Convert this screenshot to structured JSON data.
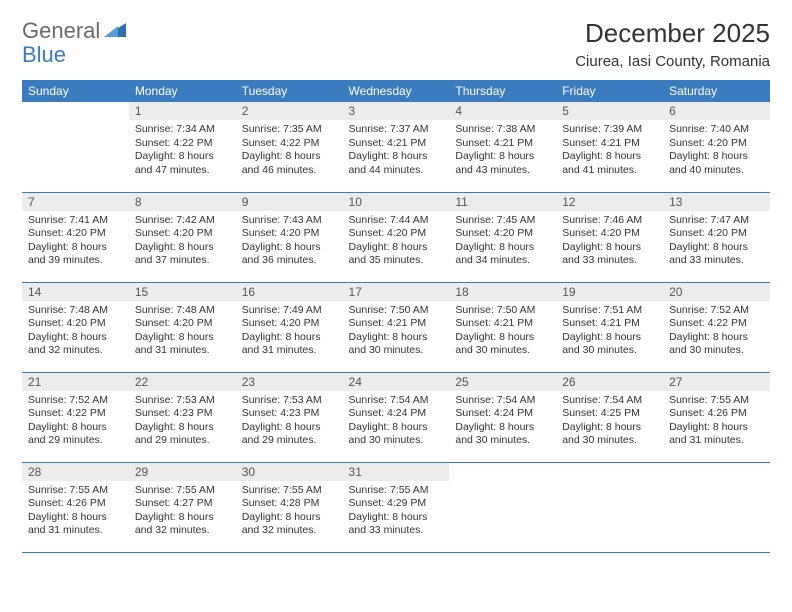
{
  "brand": {
    "part1": "General",
    "part2": "Blue"
  },
  "title": "December 2025",
  "location": "Ciurea, Iasi County, Romania",
  "colors": {
    "header_bg": "#3b7bbf",
    "header_fg": "#ffffff",
    "daynum_bg": "#ececec",
    "rule": "#3b7bbf",
    "text": "#333333",
    "page_bg": "#ffffff"
  },
  "typography": {
    "title_fontsize": 26,
    "location_fontsize": 15,
    "weekday_fontsize": 12,
    "body_fontsize": 10.5
  },
  "weekdays": [
    "Sunday",
    "Monday",
    "Tuesday",
    "Wednesday",
    "Thursday",
    "Friday",
    "Saturday"
  ],
  "weeks": [
    [
      null,
      {
        "n": "1",
        "sr": "Sunrise: 7:34 AM",
        "ss": "Sunset: 4:22 PM",
        "dl": "Daylight: 8 hours and 47 minutes."
      },
      {
        "n": "2",
        "sr": "Sunrise: 7:35 AM",
        "ss": "Sunset: 4:22 PM",
        "dl": "Daylight: 8 hours and 46 minutes."
      },
      {
        "n": "3",
        "sr": "Sunrise: 7:37 AM",
        "ss": "Sunset: 4:21 PM",
        "dl": "Daylight: 8 hours and 44 minutes."
      },
      {
        "n": "4",
        "sr": "Sunrise: 7:38 AM",
        "ss": "Sunset: 4:21 PM",
        "dl": "Daylight: 8 hours and 43 minutes."
      },
      {
        "n": "5",
        "sr": "Sunrise: 7:39 AM",
        "ss": "Sunset: 4:21 PM",
        "dl": "Daylight: 8 hours and 41 minutes."
      },
      {
        "n": "6",
        "sr": "Sunrise: 7:40 AM",
        "ss": "Sunset: 4:20 PM",
        "dl": "Daylight: 8 hours and 40 minutes."
      }
    ],
    [
      {
        "n": "7",
        "sr": "Sunrise: 7:41 AM",
        "ss": "Sunset: 4:20 PM",
        "dl": "Daylight: 8 hours and 39 minutes."
      },
      {
        "n": "8",
        "sr": "Sunrise: 7:42 AM",
        "ss": "Sunset: 4:20 PM",
        "dl": "Daylight: 8 hours and 37 minutes."
      },
      {
        "n": "9",
        "sr": "Sunrise: 7:43 AM",
        "ss": "Sunset: 4:20 PM",
        "dl": "Daylight: 8 hours and 36 minutes."
      },
      {
        "n": "10",
        "sr": "Sunrise: 7:44 AM",
        "ss": "Sunset: 4:20 PM",
        "dl": "Daylight: 8 hours and 35 minutes."
      },
      {
        "n": "11",
        "sr": "Sunrise: 7:45 AM",
        "ss": "Sunset: 4:20 PM",
        "dl": "Daylight: 8 hours and 34 minutes."
      },
      {
        "n": "12",
        "sr": "Sunrise: 7:46 AM",
        "ss": "Sunset: 4:20 PM",
        "dl": "Daylight: 8 hours and 33 minutes."
      },
      {
        "n": "13",
        "sr": "Sunrise: 7:47 AM",
        "ss": "Sunset: 4:20 PM",
        "dl": "Daylight: 8 hours and 33 minutes."
      }
    ],
    [
      {
        "n": "14",
        "sr": "Sunrise: 7:48 AM",
        "ss": "Sunset: 4:20 PM",
        "dl": "Daylight: 8 hours and 32 minutes."
      },
      {
        "n": "15",
        "sr": "Sunrise: 7:48 AM",
        "ss": "Sunset: 4:20 PM",
        "dl": "Daylight: 8 hours and 31 minutes."
      },
      {
        "n": "16",
        "sr": "Sunrise: 7:49 AM",
        "ss": "Sunset: 4:20 PM",
        "dl": "Daylight: 8 hours and 31 minutes."
      },
      {
        "n": "17",
        "sr": "Sunrise: 7:50 AM",
        "ss": "Sunset: 4:21 PM",
        "dl": "Daylight: 8 hours and 30 minutes."
      },
      {
        "n": "18",
        "sr": "Sunrise: 7:50 AM",
        "ss": "Sunset: 4:21 PM",
        "dl": "Daylight: 8 hours and 30 minutes."
      },
      {
        "n": "19",
        "sr": "Sunrise: 7:51 AM",
        "ss": "Sunset: 4:21 PM",
        "dl": "Daylight: 8 hours and 30 minutes."
      },
      {
        "n": "20",
        "sr": "Sunrise: 7:52 AM",
        "ss": "Sunset: 4:22 PM",
        "dl": "Daylight: 8 hours and 30 minutes."
      }
    ],
    [
      {
        "n": "21",
        "sr": "Sunrise: 7:52 AM",
        "ss": "Sunset: 4:22 PM",
        "dl": "Daylight: 8 hours and 29 minutes."
      },
      {
        "n": "22",
        "sr": "Sunrise: 7:53 AM",
        "ss": "Sunset: 4:23 PM",
        "dl": "Daylight: 8 hours and 29 minutes."
      },
      {
        "n": "23",
        "sr": "Sunrise: 7:53 AM",
        "ss": "Sunset: 4:23 PM",
        "dl": "Daylight: 8 hours and 29 minutes."
      },
      {
        "n": "24",
        "sr": "Sunrise: 7:54 AM",
        "ss": "Sunset: 4:24 PM",
        "dl": "Daylight: 8 hours and 30 minutes."
      },
      {
        "n": "25",
        "sr": "Sunrise: 7:54 AM",
        "ss": "Sunset: 4:24 PM",
        "dl": "Daylight: 8 hours and 30 minutes."
      },
      {
        "n": "26",
        "sr": "Sunrise: 7:54 AM",
        "ss": "Sunset: 4:25 PM",
        "dl": "Daylight: 8 hours and 30 minutes."
      },
      {
        "n": "27",
        "sr": "Sunrise: 7:55 AM",
        "ss": "Sunset: 4:26 PM",
        "dl": "Daylight: 8 hours and 31 minutes."
      }
    ],
    [
      {
        "n": "28",
        "sr": "Sunrise: 7:55 AM",
        "ss": "Sunset: 4:26 PM",
        "dl": "Daylight: 8 hours and 31 minutes."
      },
      {
        "n": "29",
        "sr": "Sunrise: 7:55 AM",
        "ss": "Sunset: 4:27 PM",
        "dl": "Daylight: 8 hours and 32 minutes."
      },
      {
        "n": "30",
        "sr": "Sunrise: 7:55 AM",
        "ss": "Sunset: 4:28 PM",
        "dl": "Daylight: 8 hours and 32 minutes."
      },
      {
        "n": "31",
        "sr": "Sunrise: 7:55 AM",
        "ss": "Sunset: 4:29 PM",
        "dl": "Daylight: 8 hours and 33 minutes."
      },
      null,
      null,
      null
    ]
  ]
}
